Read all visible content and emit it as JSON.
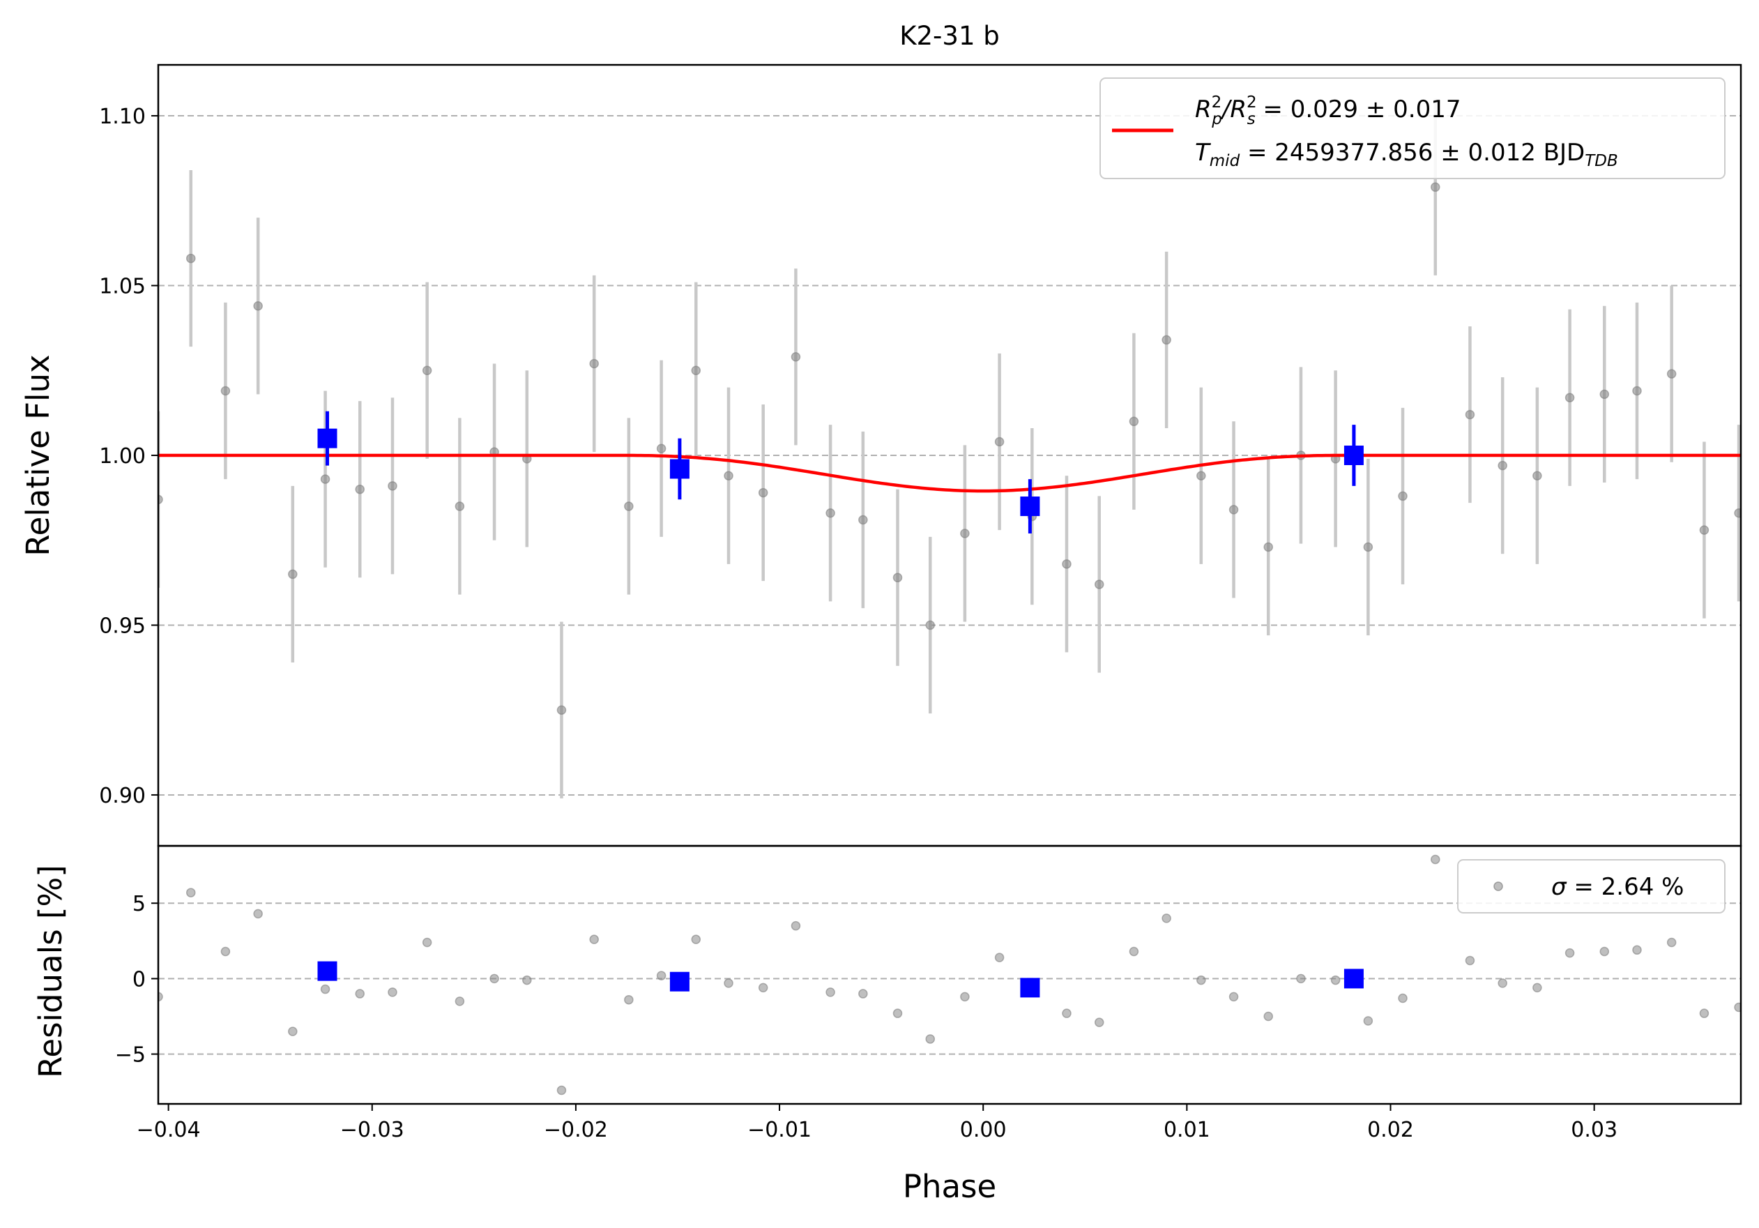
{
  "chart_data": {
    "type": "scatter",
    "title": "K2-31 b",
    "xlabel": "Phase",
    "xlim": [
      -0.0405,
      0.0372
    ],
    "xticks": [
      -0.04,
      -0.03,
      -0.02,
      -0.01,
      0.0,
      0.01,
      0.02,
      0.03
    ],
    "xtick_labels": [
      "−0.04",
      "−0.03",
      "−0.02",
      "−0.01",
      "0.00",
      "0.01",
      "0.02",
      "0.03"
    ],
    "grid": "horizontal dashed",
    "colors": {
      "data": "#808080",
      "errorbar": "#c8c8c8",
      "binned": "#0000ff",
      "model": "#ff0000",
      "grid": "#b0b0b0"
    },
    "top_panel": {
      "ylabel": "Relative Flux",
      "ylim": [
        0.885,
        1.115
      ],
      "yticks": [
        0.9,
        0.95,
        1.0,
        1.05,
        1.1
      ],
      "ytick_labels": [
        "0.90",
        "0.95",
        "1.00",
        "1.05",
        "1.10"
      ],
      "legend": {
        "placement": "upper right",
        "line1": {
          "parts": [
            "R",
            "2",
            "p",
            "/R",
            "2",
            "s",
            " = 0.029 ± 0.017"
          ]
        },
        "line2": {
          "parts": [
            "T",
            "mid",
            " = 2459377.856 ± 0.012 BJD",
            "TDB"
          ]
        }
      },
      "data": {
        "x": [
          -0.0405,
          -0.0389,
          -0.0372,
          -0.0356,
          -0.0339,
          -0.0323,
          -0.0306,
          -0.029,
          -0.0273,
          -0.0257,
          -0.024,
          -0.0224,
          -0.0207,
          -0.0191,
          -0.0174,
          -0.0158,
          -0.0141,
          -0.0125,
          -0.0108,
          -0.0092,
          -0.0075,
          -0.0059,
          -0.0042,
          -0.0026,
          -0.0009,
          0.0008,
          0.0024,
          0.0041,
          0.0057,
          0.0074,
          0.009,
          0.0107,
          0.0123,
          0.014,
          0.0156,
          0.0173,
          0.0189,
          0.0206,
          0.0222,
          0.0239,
          0.0255,
          0.0272,
          0.0288,
          0.0305,
          0.0321,
          0.0338,
          0.0354,
          0.0371
        ],
        "y": [
          0.987,
          1.058,
          1.019,
          1.044,
          0.965,
          0.993,
          0.99,
          0.991,
          1.025,
          0.985,
          1.001,
          0.999,
          0.925,
          1.027,
          0.985,
          1.002,
          1.025,
          0.994,
          0.989,
          1.029,
          0.983,
          0.981,
          0.964,
          0.95,
          0.977,
          1.004,
          0.982,
          0.968,
          0.962,
          1.01,
          1.034,
          0.994,
          0.984,
          0.973,
          1.0,
          0.999,
          0.973,
          0.988,
          1.079,
          1.012,
          0.997,
          0.994,
          1.017,
          1.018,
          1.019,
          1.024,
          0.978,
          0.983
        ],
        "yerr": 0.026
      },
      "binned": {
        "x": [
          -0.0322,
          -0.0149,
          0.0023,
          0.0182
        ],
        "y": [
          1.005,
          0.996,
          0.985,
          1.0
        ],
        "yerr": [
          0.008,
          0.009,
          0.008,
          0.009
        ]
      },
      "model": {
        "t0": 0.0,
        "half_duration": 0.0175,
        "depth": 0.0105,
        "baseline": 1.0
      }
    },
    "bottom_panel": {
      "ylabel": "Residuals [%]",
      "ylim": [
        -8.3,
        8.8
      ],
      "yticks": [
        -5,
        0,
        5
      ],
      "ytick_labels": [
        "−5",
        "0",
        "5"
      ],
      "legend": {
        "placement": "upper right",
        "parts": [
          "σ",
          " = 2.64 %"
        ]
      },
      "data": {
        "x": [
          -0.0405,
          -0.0389,
          -0.0372,
          -0.0356,
          -0.0339,
          -0.0323,
          -0.0306,
          -0.029,
          -0.0273,
          -0.0257,
          -0.024,
          -0.0224,
          -0.0207,
          -0.0191,
          -0.0174,
          -0.0158,
          -0.0141,
          -0.0125,
          -0.0108,
          -0.0092,
          -0.0075,
          -0.0059,
          -0.0042,
          -0.0026,
          -0.0009,
          0.0008,
          0.0024,
          0.0041,
          0.0057,
          0.0074,
          0.009,
          0.0107,
          0.0123,
          0.014,
          0.0156,
          0.0173,
          0.0189,
          0.0206,
          0.0222,
          0.0239,
          0.0255,
          0.0272,
          0.0288,
          0.0305,
          0.0321,
          0.0338,
          0.0354,
          0.0371
        ],
        "y": [
          -1.2,
          5.7,
          1.8,
          4.3,
          -3.5,
          -0.7,
          -1.0,
          -0.9,
          2.4,
          -1.5,
          0.0,
          -0.1,
          -7.4,
          2.6,
          -1.4,
          0.2,
          2.6,
          -0.3,
          -0.6,
          3.5,
          -0.9,
          -1.0,
          -2.3,
          -4.0,
          -1.2,
          1.4,
          -0.7,
          -2.3,
          -2.9,
          1.8,
          4.0,
          -0.1,
          -1.2,
          -2.5,
          0.0,
          -0.1,
          -2.8,
          -1.3,
          7.9,
          1.2,
          -0.3,
          -0.6,
          1.7,
          1.8,
          1.9,
          2.4,
          -2.3,
          -1.9
        ]
      },
      "binned": {
        "x": [
          -0.0322,
          -0.0149,
          0.0023,
          0.0182
        ],
        "y": [
          0.5,
          -0.2,
          -0.6,
          0.0
        ]
      }
    }
  }
}
